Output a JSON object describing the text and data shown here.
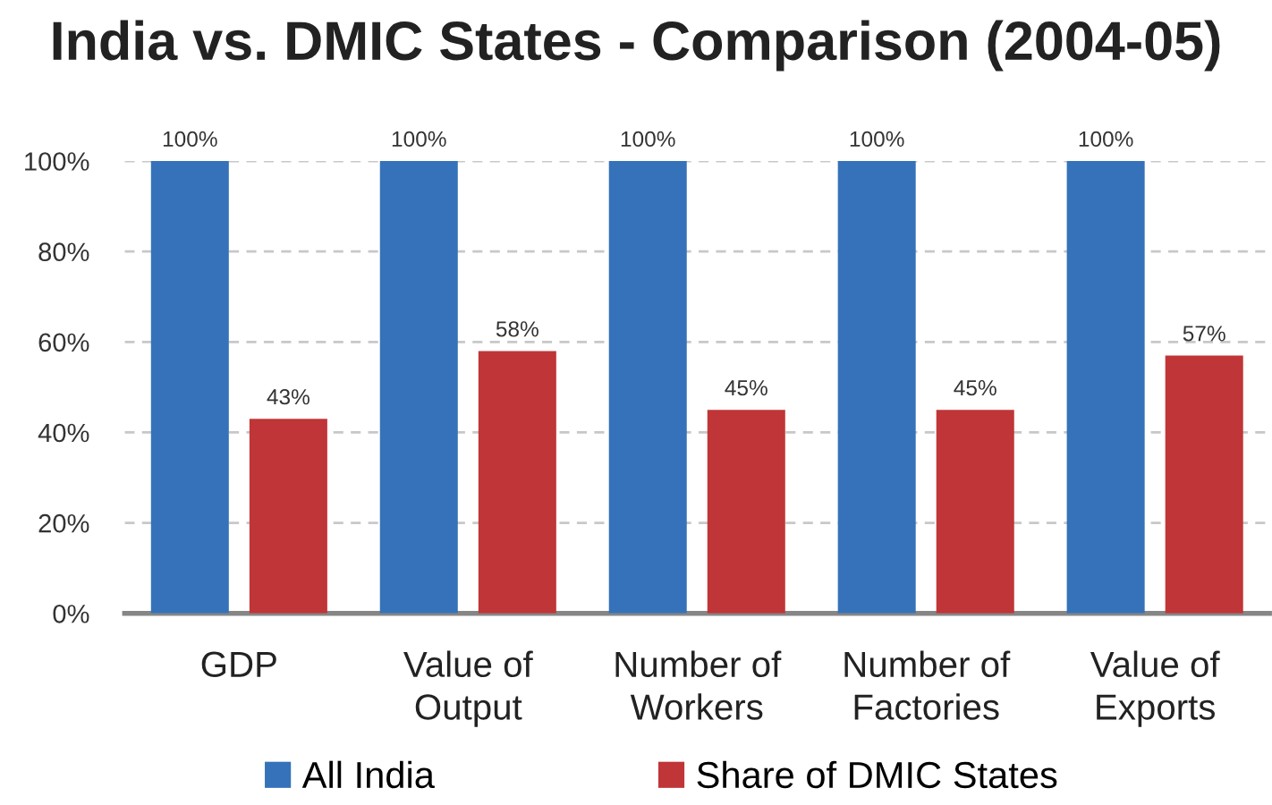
{
  "chart_data": {
    "type": "bar",
    "title": "India vs. DMIC States - Comparison (2004-05)",
    "categories": [
      "GDP",
      "Value of\nOutput",
      "Number of\nWorkers",
      "Number of\nFactories",
      "Value of\nExports"
    ],
    "series": [
      {
        "name": "All India",
        "color": "#3572b9",
        "values": [
          100,
          100,
          100,
          100,
          100
        ],
        "value_labels": [
          "100%",
          "100%",
          "100%",
          "100%",
          "100%"
        ]
      },
      {
        "name": "Share of DMIC States",
        "color": "#c03537",
        "values": [
          43,
          58,
          45,
          45,
          57
        ],
        "value_labels": [
          "43%",
          "58%",
          "45%",
          "45%",
          "57%"
        ]
      }
    ],
    "ylim": [
      0,
      100
    ],
    "yticks": [
      {
        "value": 0,
        "label": "0%"
      },
      {
        "value": 20,
        "label": "20%"
      },
      {
        "value": 40,
        "label": "40%"
      },
      {
        "value": 60,
        "label": "60%"
      },
      {
        "value": 80,
        "label": "80%"
      },
      {
        "value": 100,
        "label": "100%"
      }
    ],
    "grid": "y",
    "legend": "bottom"
  }
}
